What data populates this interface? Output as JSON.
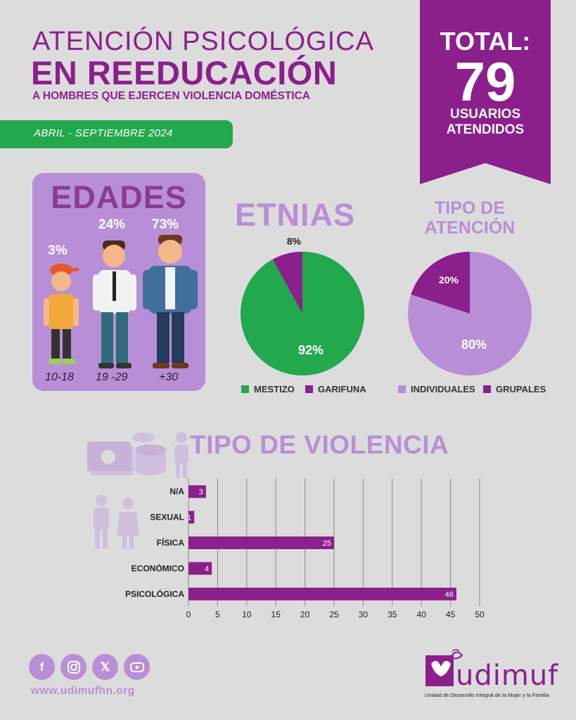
{
  "header": {
    "title_line1": "ATENCIÓN PSICOLÓGICA",
    "title_line2": "EN REEDUCACIÓN",
    "subtitle": "A HOMBRES QUE EJERCEN VIOLENCIA DOMÉSTICA",
    "period": "ABRIL - SEPTIEMBRE 2024"
  },
  "total": {
    "label": "TOTAL:",
    "value": "79",
    "sub_line1": "USUARIOS",
    "sub_line2": "ATENDIDOS"
  },
  "colors": {
    "purple": "#8b1f8c",
    "light_purple": "#b88fd6",
    "green": "#22a84d",
    "background": "#dcdcdc"
  },
  "edades": {
    "title": "EDADES",
    "groups": [
      {
        "label": "10-18",
        "pct": "3%"
      },
      {
        "label": "19 -29",
        "pct": "24%"
      },
      {
        "label": "+30",
        "pct": "73%"
      }
    ]
  },
  "etnias": {
    "title": "ETNIAS",
    "legend": [
      "MESTIZO",
      "GARIFUNA"
    ]
  },
  "atencion": {
    "title_line1": "TIPO DE",
    "title_line2": "ATENCIÓN",
    "legend": [
      "INDIVIDUALES",
      "GRUPALES"
    ]
  },
  "violencia": {
    "title": "TIPO DE VIOLENCIA"
  },
  "footer": {
    "url": "www.udimufhn.org",
    "social_icons": [
      "facebook-icon",
      "instagram-icon",
      "x-icon",
      "youtube-icon"
    ],
    "logo_text": "udimuf",
    "logo_caption": "Unidad de Desarrollo Integral de la Mujer y la Familia"
  },
  "chart_data": [
    {
      "type": "bar",
      "title": "EDADES",
      "categories": [
        "10-18",
        "19 -29",
        "+30"
      ],
      "values": [
        3,
        24,
        73
      ],
      "unit": "%"
    },
    {
      "type": "pie",
      "title": "ETNIAS",
      "categories": [
        "MESTIZO",
        "GARIFUNA"
      ],
      "values": [
        92,
        8
      ],
      "labels": [
        "92%",
        "8%"
      ],
      "colors": [
        "#22a84d",
        "#8b1f8c"
      ],
      "legend": "bottom"
    },
    {
      "type": "pie",
      "title": "TIPO DE ATENCIÓN",
      "categories": [
        "INDIVIDUALES",
        "GRUPALES"
      ],
      "values": [
        80,
        20
      ],
      "labels": [
        "80%",
        "20%"
      ],
      "colors": [
        "#b88fd6",
        "#8b1f8c"
      ],
      "legend": "bottom"
    },
    {
      "type": "bar",
      "orientation": "horizontal",
      "title": "TIPO DE VIOLENCIA",
      "categories": [
        "N/A",
        "SEXUAL",
        "FÍSICA",
        "ECONÓMICO",
        "PSICOLÓGICA"
      ],
      "values": [
        3,
        1,
        25,
        4,
        46
      ],
      "xlim": [
        0,
        50
      ],
      "xticks": [
        0,
        5,
        10,
        15,
        20,
        25,
        30,
        35,
        40,
        45,
        50
      ],
      "grid": true,
      "color": "#8b1f8c"
    }
  ]
}
